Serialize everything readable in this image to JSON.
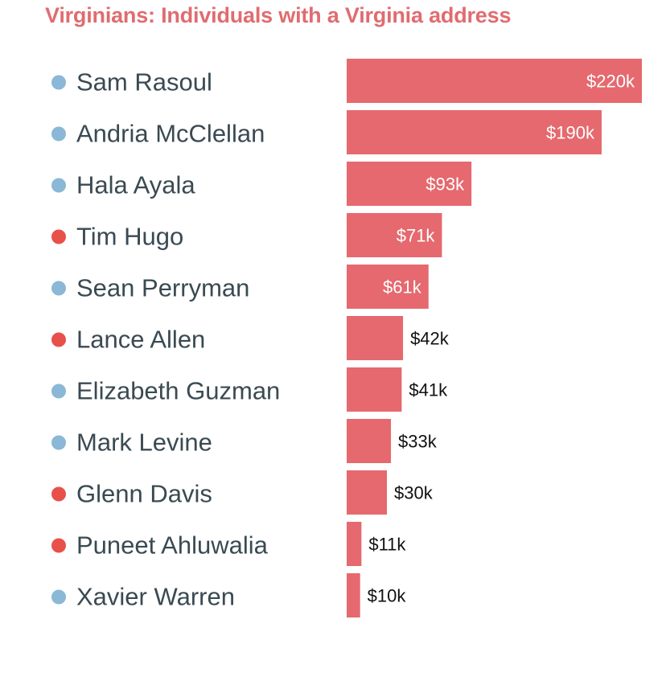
{
  "chart_data": {
    "type": "bar",
    "orientation": "horizontal",
    "title": "Virginians: Individuals with a Virginia address",
    "categories": [
      "Sam Rasoul",
      "Andria McClellan",
      "Hala Ayala",
      "Tim Hugo",
      "Sean Perryman",
      "Lance Allen",
      "Elizabeth Guzman",
      "Mark Levine",
      "Glenn Davis",
      "Puneet Ahluwalia",
      "Xavier Warren"
    ],
    "values": [
      220000,
      190000,
      93000,
      71000,
      61000,
      42000,
      41000,
      33000,
      30000,
      11000,
      10000
    ],
    "value_labels": [
      "$220k",
      "$190k",
      "$93k",
      "$71k",
      "$61k",
      "$42k",
      "$41k",
      "$33k",
      "$30k",
      "$11k",
      "$10k"
    ],
    "party_colors": [
      "#8ab8d6",
      "#8ab8d6",
      "#8ab8d6",
      "#e8504a",
      "#8ab8d6",
      "#e8504a",
      "#8ab8d6",
      "#8ab8d6",
      "#e8504a",
      "#e8504a",
      "#8ab8d6"
    ],
    "bar_color": "#e5696e",
    "xlim": [
      0,
      220000
    ],
    "grid": false,
    "legend": "none"
  }
}
